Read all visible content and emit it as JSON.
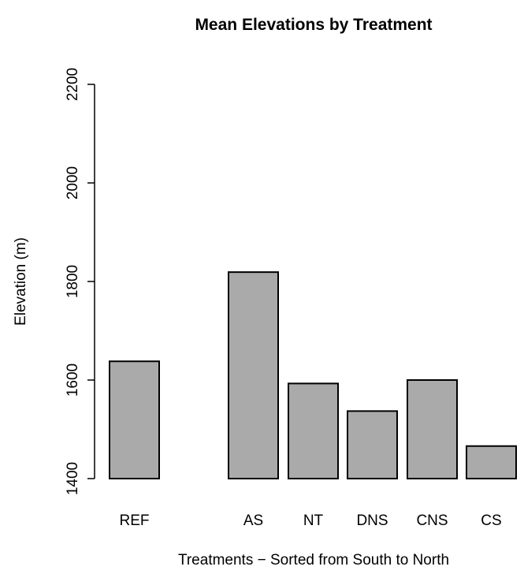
{
  "chart_data": {
    "type": "bar",
    "title": "Mean Elevations by Treatment",
    "xlabel": "Treatments − Sorted from South to North",
    "ylabel": "Elevation (m)",
    "categories": [
      "REF",
      "AS",
      "NT",
      "DNS",
      "CNS",
      "CS"
    ],
    "values": [
      1638,
      1819,
      1593,
      1537,
      1600,
      1466
    ],
    "ylim": [
      1400,
      2200
    ],
    "yticks": [
      "1400",
      "1600",
      "1800",
      "2000",
      "2200"
    ],
    "grid": false,
    "bar_color": "#aaaaaa",
    "bar_edge_color": "#000000"
  }
}
